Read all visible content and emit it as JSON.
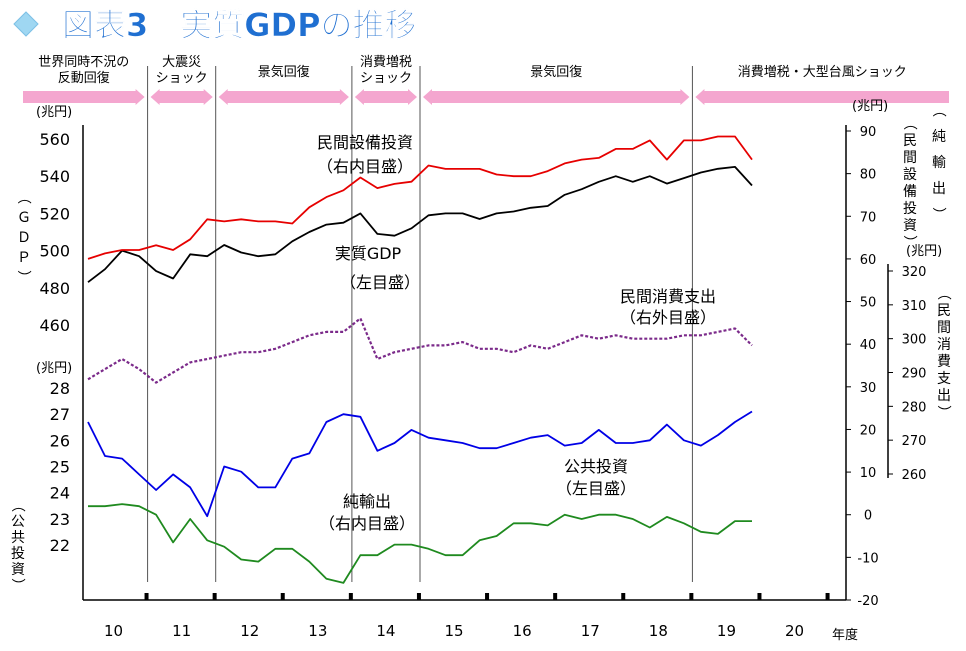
{
  "title": "図表3　実質GDPの推移",
  "events": [
    {
      "label": "世界同時不況の\n反動回復"
    },
    {
      "label": "大震災\nショック"
    },
    {
      "label": "景気回復"
    },
    {
      "label": "消費増税\nショック"
    },
    {
      "label": "景気回復"
    },
    {
      "label": "消費増税・大型台風ショック"
    }
  ],
  "axes": {
    "left_upper": {
      "unit": "(兆円)",
      "ticks": [
        "560",
        "540",
        "520",
        "500",
        "480",
        "460"
      ],
      "label": "（ＧＤＰ）"
    },
    "left_lower": {
      "unit": "(兆円)",
      "ticks": [
        "28",
        "27",
        "26",
        "25",
        "24",
        "23",
        "22"
      ],
      "label": "（公共投資）"
    },
    "right_inner": {
      "unit": "(兆円)",
      "ticks": [
        "90",
        "80",
        "70",
        "60",
        "50",
        "40",
        "30",
        "20",
        "10",
        "0",
        "-10",
        "-20"
      ],
      "label": "（民間設備投資）",
      "label2": "（純輸出）"
    },
    "right_outer": {
      "unit": "(兆円)",
      "ticks": [
        "320",
        "310",
        "300",
        "290",
        "280",
        "270",
        "260"
      ],
      "label": "（民間消費支出）"
    },
    "x": {
      "label": "年度",
      "ticks": [
        "10",
        "11",
        "12",
        "13",
        "14",
        "15",
        "16",
        "17",
        "18",
        "19",
        "20"
      ]
    }
  },
  "colors": {
    "gdp": "#000000",
    "capex": "#e60000",
    "consumption": "#7b2a8a",
    "public_investment": "#0000e6",
    "net_exports": "#1f8a1f",
    "event_arrow": "#f4a6cf",
    "divider": "#555555"
  },
  "annotations": {
    "capex": [
      "民間設備投資",
      "（右内目盛）"
    ],
    "gdp": [
      "実質GDP",
      "（左目盛）"
    ],
    "consumption": [
      "民間消費支出",
      "（右外目盛）"
    ],
    "public_investment": [
      "公共投資",
      "（左目盛）"
    ],
    "net_exports": [
      "純輸出",
      "（右内目盛）"
    ]
  },
  "chart_data": {
    "type": "line",
    "title": "図表3　実質GDPの推移",
    "xlabel": "年度",
    "x_ticks": [
      "10",
      "11",
      "12",
      "13",
      "14",
      "15",
      "16",
      "17",
      "18",
      "19",
      "20"
    ],
    "quarters": [
      "10Q1",
      "10Q2",
      "10Q3",
      "10Q4",
      "11Q1",
      "11Q2",
      "11Q3",
      "11Q4",
      "12Q1",
      "12Q2",
      "12Q3",
      "12Q4",
      "13Q1",
      "13Q2",
      "13Q3",
      "13Q4",
      "14Q1",
      "14Q2",
      "14Q3",
      "14Q4",
      "15Q1",
      "15Q2",
      "15Q3",
      "15Q4",
      "16Q1",
      "16Q2",
      "16Q3",
      "16Q4",
      "17Q1",
      "17Q2",
      "17Q3",
      "17Q4",
      "18Q1",
      "18Q2",
      "18Q3",
      "18Q4",
      "19Q1",
      "19Q2",
      "19Q3",
      "19Q4"
    ],
    "event_dividers_after": [
      "10Q4",
      "11Q4",
      "13Q4",
      "14Q4",
      "18Q4"
    ],
    "series": [
      {
        "name": "実質GDP",
        "axis": "left_upper",
        "ylim": [
          460,
          560
        ],
        "values": [
          483,
          490,
          500,
          497,
          489,
          485,
          498,
          497,
          503,
          499,
          497,
          498,
          505,
          510,
          514,
          515,
          520,
          509,
          508,
          512,
          519,
          520,
          520,
          517,
          520,
          521,
          523,
          524,
          530,
          533,
          537,
          540,
          537,
          540,
          536,
          539,
          542,
          544,
          545,
          535
        ]
      },
      {
        "name": "民間設備投資",
        "axis": "right_inner",
        "ylim": [
          -20,
          90
        ],
        "values": [
          60,
          61.3,
          62.1,
          62.1,
          63.2,
          62.1,
          64.6,
          69.3,
          68.8,
          69.3,
          68.8,
          68.8,
          68.3,
          72.1,
          74.5,
          76.1,
          79.1,
          76.6,
          77.6,
          78.1,
          81.9,
          81.1,
          81.1,
          81.1,
          79.8,
          79.4,
          79.4,
          80.6,
          82.4,
          83.3,
          83.7,
          85.8,
          85.8,
          87.8,
          83.3,
          87.8,
          87.8,
          88.7,
          88.7,
          83.3
        ]
      },
      {
        "name": "民間消費支出",
        "axis": "right_outer",
        "ylim": [
          260,
          320
        ],
        "values": [
          288,
          291,
          294,
          291,
          287,
          290,
          293,
          294,
          295,
          296,
          296,
          297,
          299,
          301,
          302,
          302,
          306,
          294,
          296,
          297,
          298,
          298,
          299,
          297,
          297,
          296,
          298,
          297,
          299,
          301,
          300,
          301,
          300,
          300,
          300,
          301,
          301,
          302,
          303,
          298
        ]
      },
      {
        "name": "公共投資",
        "axis": "left_lower",
        "ylim": [
          21.6,
          28
        ],
        "values": [
          26.7,
          25.4,
          25.3,
          24.7,
          24.1,
          24.7,
          24.2,
          23.1,
          25,
          24.8,
          24.2,
          24.2,
          25.3,
          25.5,
          26.7,
          27,
          26.9,
          25.6,
          25.9,
          26.4,
          26.1,
          26,
          25.9,
          25.7,
          25.7,
          25.9,
          26.1,
          26.2,
          25.8,
          25.9,
          26.4,
          25.9,
          25.9,
          26,
          26.6,
          26,
          25.8,
          26.2,
          26.7,
          27.1
        ]
      },
      {
        "name": "純輸出",
        "axis": "right_inner",
        "ylim": [
          -20,
          90
        ],
        "values": [
          2,
          2,
          2.5,
          2,
          0,
          -6.5,
          -1,
          -6,
          -7.5,
          -10.5,
          -11,
          -8,
          -8,
          -11,
          -15,
          -16,
          -9.5,
          -9.5,
          -7,
          -7,
          -8,
          -9.5,
          -9.5,
          -6,
          -5,
          -2,
          -2,
          -2.5,
          0,
          -1,
          0,
          0,
          -1,
          -3,
          -0.5,
          -2,
          -4,
          -4.5,
          -1.5,
          -1.5
        ]
      }
    ]
  }
}
